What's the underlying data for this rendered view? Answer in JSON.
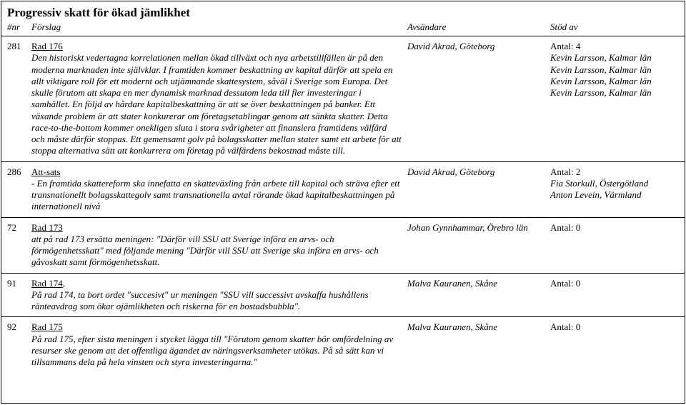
{
  "title": "Progressiv skatt för ökad jämlikhet",
  "headers": {
    "nr": "#nr",
    "proposal": "Förslag",
    "sender": "Avsändare",
    "support": "Stöd av"
  },
  "rows": [
    {
      "nr": "281",
      "head": "Rad 176",
      "body": "Den historiskt vedertagna korrelationen mellan ökad tillväxt och nya arbetstillfällen är på den moderna marknaden inte självklar. I framtiden kommer beskattning av kapital därför att spela en allt viktigare roll för ett modernt och utjämnande skattesystem, såväl i Sverige som Europa. Det skulle förutom att skapa en mer dynamisk marknad dessutom leda till fler investeringar i samhället. En följd av hårdare kapitalbeskattning är att se över beskattningen på banker. Ett växande problem är att stater konkurerar om företagsetablingar genom att sänkta skatter. Detta race-to-the-bottom kommer onekligen sluta i stora svårigheter att finansiera framtidens välfärd och måste därför stoppas. Ett gemensamt golv på bolagsskatter mellan stater samt ett arbete för att stoppa alternativa sätt att konkurrera om företag på välfärdens bekostnad måste till.",
      "sender": "David Akrad, Göteborg",
      "support_count": "Antal: 4",
      "supporters": [
        "Kevin Larsson, Kalmar län",
        "Kevin Larsson, Kalmar län",
        "Kevin Larsson, Kalmar län",
        "Kevin Larsson, Kalmar län"
      ]
    },
    {
      "nr": "286",
      "head": "Att-sats",
      "body": "- En framtida skattereform ska innefatta en skatteväxling från arbete till kapital och sträva efter ett transnationellt bolagsskattegolv samt transnationella avtal rörande ökad kapitalbeskattningen på internationell nivå",
      "sender": "David Akrad, Göteborg",
      "support_count": "Antal: 2",
      "supporters": [
        "Fia Storkull, Östergötland",
        "Anton Levein, Värmland"
      ]
    },
    {
      "nr": "72",
      "head": "Rad 173",
      "body": "att på rad 173 ersätta meningen: \"Därför vill SSU att Sverige införa en arvs- och förmögenhetsskatt\" med följande mening \"Därför vill SSU att Sverige ska införa en arvs- och gåvoskatt samt förmögenhetsskatt.",
      "sender": "Johan Gynnhammar, Örebro län",
      "support_count": "Antal: 0",
      "supporters": []
    },
    {
      "nr": "91",
      "head": "Rad 174,",
      "body": "På rad 174, ta bort ordet \"succesivt\" ur meningen \"SSU vill successivt avskaffa hushållens ränteavdrag som ökar ojämlikheten och riskerna för en bostadsbubbla\".",
      "sender": "Malva Kauranen, Skåne",
      "support_count": "Antal: 0",
      "supporters": []
    },
    {
      "nr": "92",
      "head": "Rad 175",
      "body": "På rad 175, efter sista meningen i stycket lägga till \"Förutom genom skatter bör omfördelning av resurser ske genom att det offentliga ägandet av näringsverksamheter utökas. På så sätt kan vi tillsammans dela på hela vinsten och styra investeringarna.\"",
      "sender": "Malva Kauranen, Skåne",
      "support_count": "Antal: 0",
      "supporters": []
    }
  ]
}
